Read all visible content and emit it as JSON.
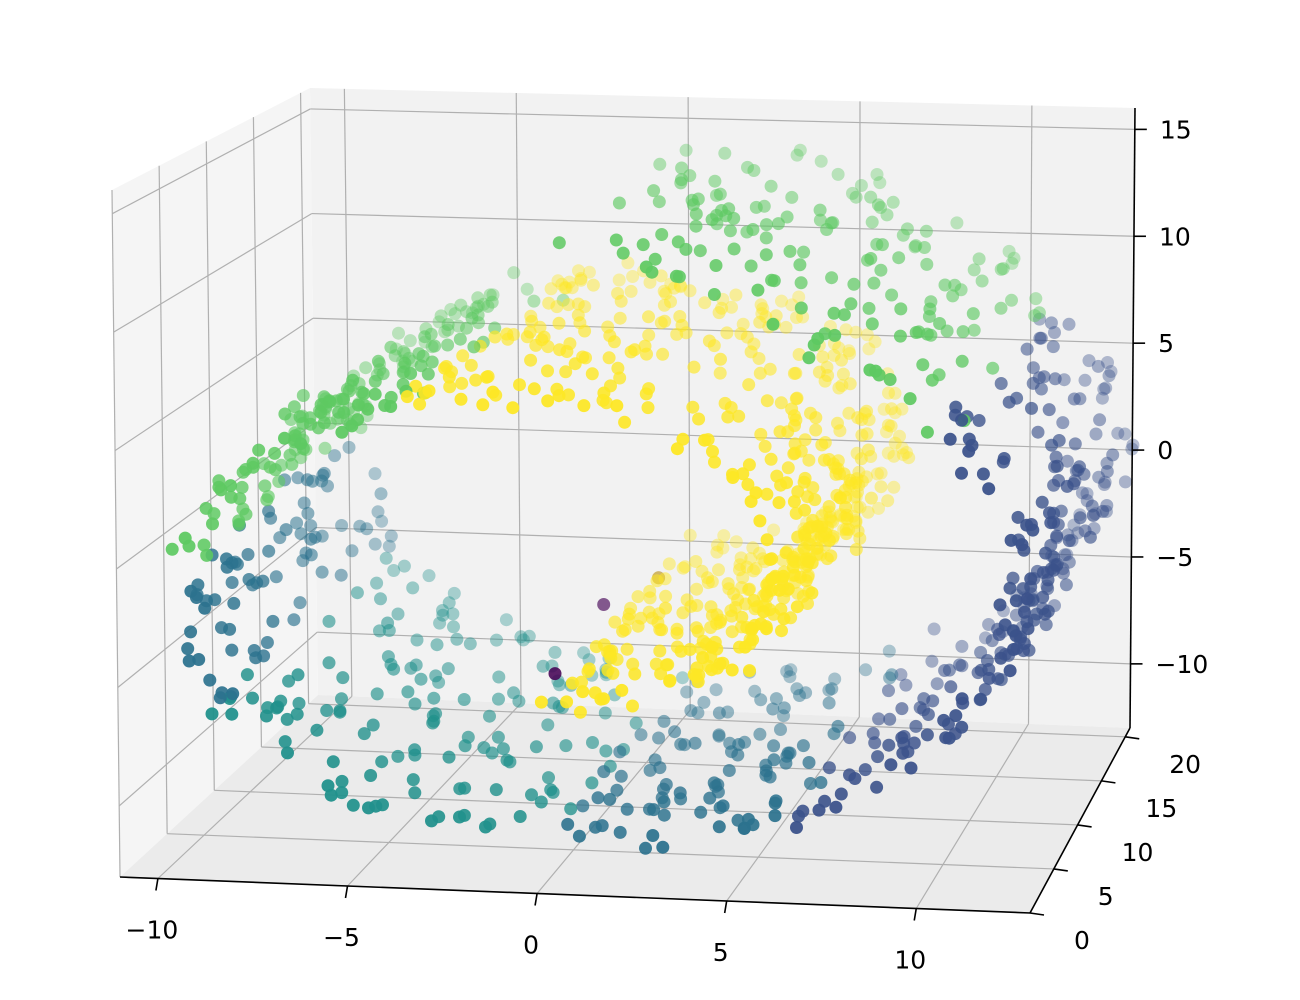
{
  "chart_data": {
    "type": "scatter",
    "projection": "3d",
    "dataset": "swiss roll",
    "title": "",
    "xlabel": "",
    "ylabel": "",
    "zlabel": "",
    "colormap": "viridis",
    "n_points": 1500,
    "clusters": 6,
    "view": {
      "elev": 10,
      "azim": -80
    },
    "x_axis": {
      "ticks": [
        -10,
        -5,
        0,
        5,
        10
      ],
      "tick_labels": [
        "−10",
        "−5",
        "0",
        "5",
        "10"
      ],
      "range": [
        -11,
        13
      ]
    },
    "y_axis": {
      "ticks": [
        0,
        5,
        10,
        15,
        20
      ],
      "tick_labels": [
        "0",
        "5",
        "10",
        "15",
        "20"
      ],
      "range": [
        0,
        21
      ]
    },
    "z_axis": {
      "ticks": [
        -10,
        -5,
        0,
        5,
        10,
        15
      ],
      "tick_labels": [
        "−10",
        "−5",
        "0",
        "5",
        "10",
        "15"
      ],
      "range": [
        -13,
        16
      ]
    },
    "series_colors": [
      "#440154",
      "#3b528b",
      "#21918c",
      "#5ec962",
      "#fde725",
      "#2c728e"
    ],
    "grid": true,
    "legend": "none"
  }
}
